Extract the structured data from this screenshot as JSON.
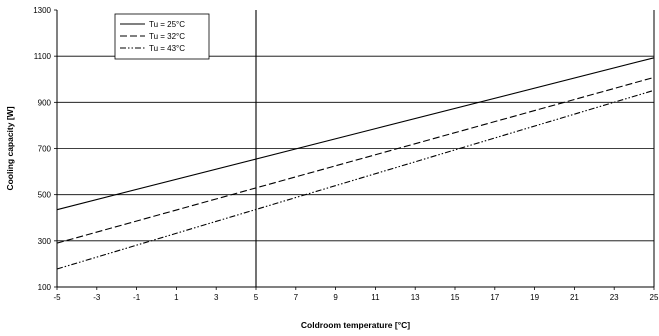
{
  "chart_data": {
    "type": "line",
    "xlabel": "Coldroom temperature [°C]",
    "ylabel": "Cooling capacity [W]",
    "xlim": [
      -5,
      25
    ],
    "ylim": [
      100,
      1300
    ],
    "xticks": [
      -5,
      -3,
      -1,
      1,
      3,
      5,
      7,
      9,
      11,
      13,
      15,
      17,
      19,
      21,
      23,
      25
    ],
    "yticks": [
      100,
      300,
      500,
      700,
      900,
      1100,
      1300
    ],
    "horizontal_gridlines": [
      300,
      500,
      700,
      900,
      1100
    ],
    "vertical_reference_line_x": 5,
    "legend_position": "top-left",
    "series": [
      {
        "name": "Tu = 25°C",
        "dash": "solid",
        "x": [
          -5,
          25
        ],
        "y": [
          435,
          1093
        ]
      },
      {
        "name": "Tu = 32°C",
        "dash": "dashed",
        "x": [
          -5,
          25
        ],
        "y": [
          290,
          1008
        ]
      },
      {
        "name": "Tu = 43°C",
        "dash": "dash-dot-dot",
        "x": [
          -5,
          25
        ],
        "y": [
          178,
          952
        ]
      }
    ]
  }
}
